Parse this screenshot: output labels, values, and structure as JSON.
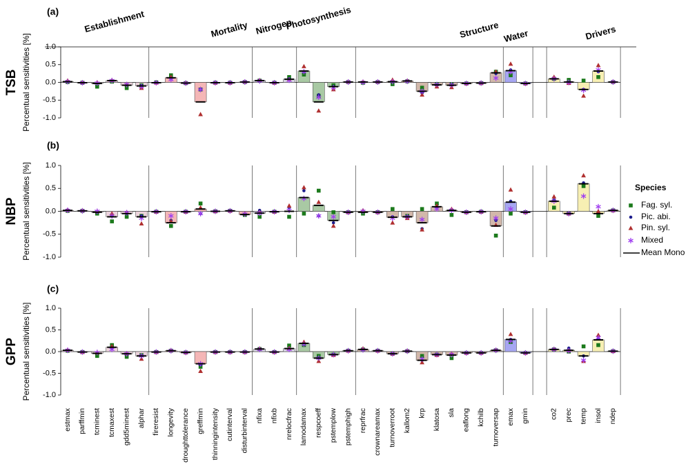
{
  "chart_data": {
    "type": "bar",
    "groups": [
      {
        "name": "Establishment",
        "color": "#ecd3dc",
        "categories": [
          "estmax",
          "parffmin",
          "tcminest",
          "tcmaxest",
          "gdd5minest",
          "alphar"
        ]
      },
      {
        "name": "Mortality",
        "color": "#f4b6b6",
        "categories": [
          "fireresist",
          "longevity",
          "droughttolerance",
          "greffmin",
          "thinningintensity",
          "cutinterval",
          "disturbinterval"
        ]
      },
      {
        "name": "Nitrogen",
        "color": "#d9d4e6",
        "categories": [
          "nfixa",
          "nfixb",
          "nrelocfrac"
        ]
      },
      {
        "name": "Photosynthesis",
        "color": "#a9c9a4",
        "categories": [
          "lamodamax",
          "respcoeff",
          "pstemplow",
          "pstemphigh"
        ]
      },
      {
        "name": "Structure",
        "color": "#d2b8aa",
        "categories": [
          "reprfrac",
          "crownareamax",
          "turnoverroot",
          "kallom2",
          "krp",
          "klatosa",
          "sla",
          "eaflong",
          "kchilb",
          "turnoversap"
        ]
      },
      {
        "name": "Water",
        "color": "#a6a6f2",
        "categories": [
          "emax",
          "gmin"
        ]
      },
      {
        "name": "Drivers",
        "color": "#f7efb3",
        "categories": [
          "co2",
          "prec",
          "temp",
          "insol",
          "ndep"
        ]
      }
    ],
    "legend_title": "Species",
    "series": [
      {
        "name": "Mean Mono",
        "color": "#000000",
        "marker": "line"
      },
      {
        "name": "Fag. syl.",
        "color": "#1c7a1c",
        "marker": "square"
      },
      {
        "name": "Pic. abi.",
        "color": "#1c1c8c",
        "marker": "circle"
      },
      {
        "name": "Pin. syl.",
        "color": "#b03030",
        "marker": "triangle"
      },
      {
        "name": "Mixed",
        "color": "#a040f0",
        "marker": "asterisk"
      }
    ],
    "panels": [
      {
        "title": "(a)",
        "ylabel": "TSB",
        "axis_label": "Percentual sensitivities [%]",
        "ylim": [
          -1,
          1
        ],
        "yticks": [
          {
            "value": 1,
            "label": "1.0"
          },
          {
            "value": 0.5,
            "label": "0.5"
          },
          {
            "value": 0,
            "label": "0.0"
          },
          {
            "value": -0.5,
            "label": "-0.5"
          },
          {
            "value": -1,
            "label": "-1.0"
          }
        ],
        "series": [
          {
            "values": [
              0.02,
              -0.01,
              -0.03,
              0.05,
              -0.08,
              -0.1,
              -0.01,
              0.13,
              -0.02,
              -0.55,
              -0.01,
              -0.01,
              0.01,
              0.05,
              -0.01,
              0.09,
              0.32,
              -0.55,
              -0.12,
              0.01,
              0.01,
              0.01,
              0.02,
              0.04,
              -0.25,
              -0.07,
              -0.08,
              -0.03,
              -0.02,
              0.27,
              0.33,
              -0.03,
              0.1,
              0.01,
              -0.2,
              0.32,
              0.01
            ]
          },
          {
            "values": [
              0.01,
              -0.01,
              -0.12,
              0.02,
              -0.16,
              -0.08,
              0,
              0.2,
              -0.02,
              -0.2,
              -0.01,
              -0.01,
              0.01,
              0.05,
              -0.01,
              0.15,
              0.22,
              -0.38,
              -0.08,
              0.01,
              -0.01,
              0.01,
              -0.05,
              0.03,
              -0.15,
              -0.05,
              -0.05,
              -0.03,
              -0.02,
              0.3,
              0.2,
              -0.03,
              0.1,
              0.07,
              0.05,
              0.15,
              0.01
            ]
          },
          {
            "values": [
              0.03,
              -0.02,
              -0.02,
              0.05,
              -0.07,
              -0.09,
              -0.01,
              0.1,
              -0.03,
              -0.2,
              -0.01,
              -0.01,
              0.01,
              0.05,
              -0.01,
              0.1,
              0.3,
              -0.35,
              -0.12,
              0.01,
              0.01,
              0.01,
              0.03,
              0.04,
              -0.3,
              -0.08,
              -0.08,
              -0.03,
              -0.02,
              0.25,
              0.35,
              -0.03,
              0.12,
              0,
              -0.2,
              0.3,
              0.01
            ]
          },
          {
            "values": [
              0.05,
              0,
              0,
              0.06,
              -0.05,
              -0.16,
              -0.01,
              0.15,
              -0.01,
              -0.9,
              -0.01,
              -0.01,
              0.02,
              0.06,
              -0.01,
              0.08,
              0.45,
              -0.8,
              -0.2,
              0.02,
              0.02,
              0.02,
              0.07,
              0.05,
              -0.35,
              -0.12,
              -0.14,
              -0.03,
              -0.02,
              0.3,
              0.52,
              -0.03,
              0.15,
              -0.02,
              -0.38,
              0.48,
              0.02
            ]
          },
          {
            "values": [
              0.02,
              -0.01,
              -0.02,
              0.05,
              -0.06,
              -0.12,
              -0.01,
              0.08,
              -0.02,
              -0.2,
              -0.01,
              -0.01,
              0.01,
              0.04,
              -0.01,
              0.06,
              0.3,
              -0.42,
              -0.15,
              0.01,
              0,
              0.01,
              0.02,
              0.03,
              -0.25,
              -0.06,
              -0.07,
              -0.03,
              -0.02,
              0.12,
              0.3,
              -0.03,
              0.1,
              0,
              -0.22,
              0.35,
              0.01
            ]
          }
        ]
      },
      {
        "title": "(b)",
        "ylabel": "NBP",
        "axis_label": "Percentual sensitivities [%]",
        "ylim": [
          -1,
          1
        ],
        "yticks": [
          {
            "value": 1,
            "label": "1.0"
          },
          {
            "value": 0.5,
            "label": "0.5"
          },
          {
            "value": 0,
            "label": "0.0"
          },
          {
            "value": -0.5,
            "label": "-0.5"
          },
          {
            "value": -1,
            "label": "-1.0"
          }
        ],
        "series": [
          {
            "values": [
              0.02,
              0.01,
              -0.02,
              -0.12,
              -0.05,
              -0.12,
              -0.01,
              -0.25,
              -0.01,
              0.05,
              0,
              0.01,
              -0.07,
              -0.04,
              -0.01,
              0,
              0.3,
              0.13,
              -0.2,
              -0.02,
              -0.02,
              -0.02,
              -0.13,
              -0.12,
              -0.25,
              0.1,
              0.02,
              -0.02,
              -0.01,
              -0.32,
              0.2,
              -0.02,
              0.22,
              -0.05,
              0.6,
              -0.05,
              0.02
            ]
          },
          {
            "values": [
              0.01,
              0.01,
              -0.05,
              -0.22,
              -0.12,
              -0.1,
              -0.01,
              -0.32,
              -0.01,
              0.17,
              0,
              0.01,
              -0.08,
              -0.12,
              -0.01,
              -0.12,
              -0.05,
              0.45,
              -0.02,
              -0.02,
              -0.05,
              -0.02,
              0.05,
              -0.1,
              0.05,
              0.17,
              -0.08,
              -0.02,
              -0.01,
              -0.53,
              -0.05,
              -0.02,
              0.08,
              -0.05,
              0.55,
              -0.1,
              0.02
            ]
          },
          {
            "values": [
              0.03,
              0.01,
              -0.02,
              -0.1,
              -0.05,
              -0.1,
              -0.01,
              -0.2,
              -0.01,
              -0.05,
              0,
              0.01,
              -0.06,
              0.02,
              -0.01,
              0.08,
              0.45,
              -0.1,
              -0.25,
              -0.02,
              0,
              -0.02,
              -0.12,
              -0.12,
              -0.38,
              0.1,
              0.04,
              -0.02,
              -0.01,
              -0.2,
              0.22,
              -0.02,
              0.25,
              -0.05,
              0.62,
              -0.03,
              0.02
            ]
          },
          {
            "values": [
              0.03,
              0.02,
              0,
              -0.05,
              -0.02,
              -0.27,
              -0.01,
              -0.22,
              -0.01,
              0.08,
              0,
              0.01,
              -0.05,
              -0.02,
              -0.01,
              0.12,
              0.52,
              0.2,
              -0.32,
              -0.02,
              0.02,
              -0.02,
              -0.25,
              -0.15,
              -0.4,
              0.12,
              0.05,
              -0.02,
              -0.01,
              -0.3,
              0.47,
              -0.02,
              0.32,
              -0.05,
              0.78,
              0,
              0.02
            ]
          },
          {
            "values": [
              0.02,
              0.01,
              0,
              -0.1,
              -0.03,
              -0.15,
              -0.01,
              -0.1,
              -0.01,
              -0.05,
              0,
              0.01,
              -0.06,
              -0.04,
              -0.01,
              0.02,
              0.28,
              -0.1,
              -0.12,
              -0.02,
              0,
              -0.02,
              -0.15,
              -0.12,
              -0.18,
              0.05,
              0.02,
              -0.02,
              -0.01,
              -0.15,
              0.05,
              -0.02,
              0.22,
              -0.05,
              0.33,
              0.1,
              0.02
            ]
          }
        ]
      },
      {
        "title": "(c)",
        "ylabel": "GPP",
        "axis_label": "Percentual sensitivities [%]",
        "ylim": [
          -1,
          1
        ],
        "yticks": [
          {
            "value": 1,
            "label": "1.0"
          },
          {
            "value": 0.5,
            "label": "0.5"
          },
          {
            "value": 0,
            "label": "0.0"
          },
          {
            "value": -0.5,
            "label": "-0.5"
          },
          {
            "value": -1,
            "label": "-1.0"
          }
        ],
        "series": [
          {
            "values": [
              0.03,
              -0.01,
              -0.04,
              0.1,
              -0.05,
              -0.1,
              -0.01,
              0.02,
              -0.02,
              -0.28,
              -0.01,
              -0.01,
              -0.01,
              0.06,
              -0.01,
              0.07,
              0.19,
              -0.15,
              -0.07,
              0.02,
              0.05,
              0.02,
              -0.05,
              0.01,
              -0.2,
              -0.07,
              -0.08,
              -0.03,
              -0.03,
              0.03,
              0.28,
              -0.03,
              0.05,
              0.03,
              -0.1,
              0.27,
              0.01
            ]
          },
          {
            "values": [
              0.02,
              -0.01,
              -0.1,
              0.15,
              -0.12,
              -0.08,
              -0.01,
              0.02,
              -0.02,
              -0.35,
              -0.01,
              -0.01,
              -0.01,
              0.06,
              -0.01,
              0.14,
              0.15,
              -0.1,
              -0.07,
              0.02,
              0.05,
              0.02,
              -0.05,
              0.01,
              -0.1,
              -0.07,
              -0.15,
              -0.03,
              -0.03,
              0.03,
              0.22,
              -0.03,
              0.05,
              0,
              0.12,
              0.15,
              0.01
            ]
          },
          {
            "values": [
              0.03,
              -0.01,
              -0.03,
              0.08,
              -0.05,
              -0.1,
              -0.01,
              0.02,
              -0.02,
              -0.3,
              -0.01,
              -0.01,
              -0.01,
              0.06,
              -0.01,
              0.06,
              0.18,
              -0.15,
              -0.07,
              0.02,
              0.05,
              0.02,
              -0.05,
              0.01,
              -0.2,
              -0.07,
              -0.06,
              -0.03,
              -0.03,
              0.03,
              0.28,
              -0.03,
              0.05,
              0.08,
              -0.1,
              0.3,
              0.01
            ]
          },
          {
            "values": [
              0.04,
              -0.01,
              -0.02,
              0.12,
              -0.04,
              -0.17,
              -0.01,
              0.03,
              -0.02,
              -0.45,
              -0.01,
              -0.01,
              -0.01,
              0.07,
              -0.01,
              0.08,
              0.22,
              -0.22,
              -0.08,
              0.02,
              0.07,
              0.02,
              -0.05,
              0.02,
              -0.25,
              -0.08,
              -0.05,
              -0.03,
              -0.03,
              0.04,
              0.4,
              -0.03,
              0.06,
              0.03,
              -0.22,
              0.38,
              0.01
            ]
          },
          {
            "values": [
              0.03,
              -0.01,
              -0.02,
              0.05,
              -0.05,
              -0.1,
              -0.01,
              0.02,
              -0.02,
              -0.28,
              -0.01,
              -0.01,
              -0.01,
              0.05,
              -0.01,
              0.05,
              0.17,
              -0.15,
              -0.07,
              0.02,
              0.04,
              0.02,
              -0.05,
              0.01,
              -0.17,
              -0.07,
              -0.07,
              -0.03,
              -0.03,
              0.03,
              0.25,
              -0.03,
              0.05,
              0.02,
              -0.2,
              0.32,
              0.01
            ]
          }
        ]
      }
    ]
  }
}
